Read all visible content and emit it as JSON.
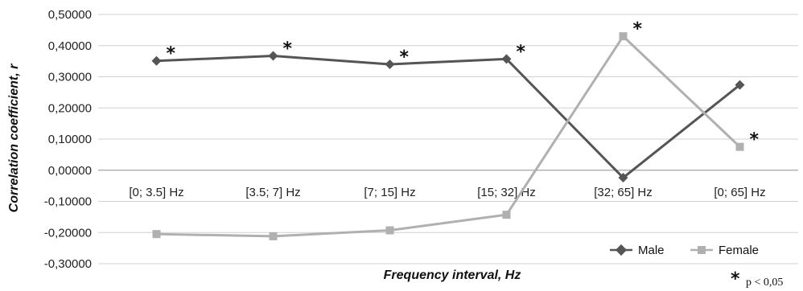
{
  "chart_data": {
    "type": "line",
    "title": "",
    "xlabel": "Frequency interval, Hz",
    "ylabel": "Correlation coefficient, r",
    "categories": [
      "[0; 3.5] Hz",
      "[3.5; 7] Hz",
      "[7; 15] Hz",
      "[15; 32] Hz",
      "[32; 65] Hz",
      "[0; 65] Hz"
    ],
    "ylim": [
      -0.3,
      0.5
    ],
    "yticks": [
      0.5,
      0.4,
      0.3,
      0.2,
      0.1,
      0.0,
      -0.1,
      -0.2,
      -0.3
    ],
    "ytick_labels": [
      "0,50000",
      "0,40000",
      "0,30000",
      "0,20000",
      "0,10000",
      "0,00000",
      "-0,10000",
      "-0,20000",
      "-0,30000"
    ],
    "grid": true,
    "legend_position": "bottom-right",
    "series": [
      {
        "name": "Male",
        "color": "#555555",
        "marker": "diamond",
        "values": [
          0.351,
          0.367,
          0.34,
          0.357,
          -0.024,
          0.274
        ],
        "significant": [
          true,
          true,
          true,
          true,
          false,
          false
        ]
      },
      {
        "name": "Female",
        "color": "#b0b0b0",
        "marker": "square",
        "values": [
          -0.205,
          -0.212,
          -0.193,
          -0.143,
          0.43,
          0.075
        ],
        "significant": [
          false,
          false,
          false,
          false,
          true,
          true
        ]
      }
    ],
    "significance_marker": "*",
    "annotation": {
      "symbol": "*",
      "text": "p < 0,05"
    }
  }
}
